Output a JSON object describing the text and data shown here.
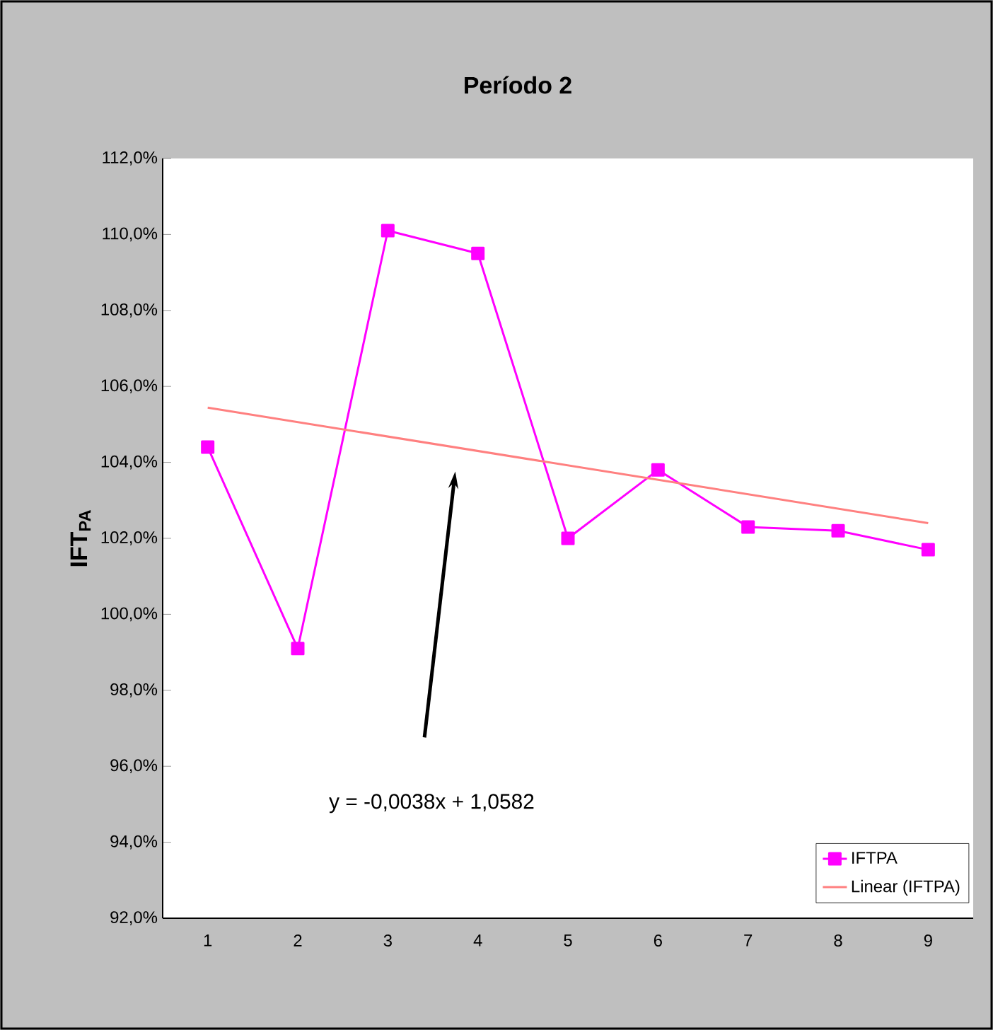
{
  "chart_data": {
    "type": "line",
    "title": "Período 2",
    "ylabel": "IFT$_{PA}$",
    "x": [
      1,
      2,
      3,
      4,
      5,
      6,
      7,
      8,
      9
    ],
    "xlim": [
      0.5,
      9.5
    ],
    "xticks": [
      1,
      2,
      3,
      4,
      5,
      6,
      7,
      8,
      9
    ],
    "ylim": [
      92,
      112
    ],
    "yticks": [
      {
        "value": 92,
        "label": "92,0%"
      },
      {
        "value": 94,
        "label": "94,0%"
      },
      {
        "value": 96,
        "label": "96,0%"
      },
      {
        "value": 98,
        "label": "98,0%"
      },
      {
        "value": 100,
        "label": "100,0%"
      },
      {
        "value": 102,
        "label": "102,0%"
      },
      {
        "value": 104,
        "label": "104,0%"
      },
      {
        "value": 106,
        "label": "106,0%"
      },
      {
        "value": 108,
        "label": "108,0%"
      },
      {
        "value": 110,
        "label": "110,0%"
      },
      {
        "value": 112,
        "label": "112,0%"
      }
    ],
    "series": [
      {
        "name": "IFTPA",
        "color": "#ff00ff",
        "marker": "square",
        "values": [
          104.4,
          99.1,
          110.1,
          109.5,
          102.0,
          103.8,
          102.3,
          102.2,
          101.7
        ]
      },
      {
        "name": "Linear (IFTPA)",
        "color": "#ff8080",
        "marker": "none",
        "x": [
          1,
          9
        ],
        "values": [
          105.44,
          102.4
        ]
      }
    ],
    "annotations": [
      "y = -0,0038x + 1,0582"
    ],
    "grid": false,
    "legend": "bottom right"
  }
}
